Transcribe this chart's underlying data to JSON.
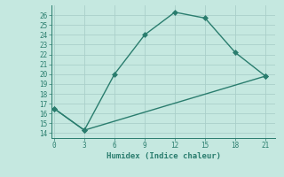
{
  "line1_x": [
    0,
    3,
    6,
    9,
    12,
    15,
    18,
    21
  ],
  "line1_y": [
    16.5,
    14.3,
    20.0,
    24.0,
    26.3,
    25.7,
    22.2,
    19.8
  ],
  "line2_x": [
    0,
    3,
    21
  ],
  "line2_y": [
    16.5,
    14.3,
    19.8
  ],
  "line_color": "#2a7d6e",
  "bg_color": "#c5e8e0",
  "grid_color": "#aacfca",
  "xlabel": "Humidex (Indice chaleur)",
  "ylim": [
    13.5,
    27.0
  ],
  "xlim": [
    -0.3,
    22.0
  ],
  "yticks": [
    14,
    15,
    16,
    17,
    18,
    19,
    20,
    21,
    22,
    23,
    24,
    25,
    26
  ],
  "xticks": [
    0,
    3,
    6,
    9,
    12,
    15,
    18,
    21
  ],
  "marker_size": 3,
  "line_width": 1.0
}
